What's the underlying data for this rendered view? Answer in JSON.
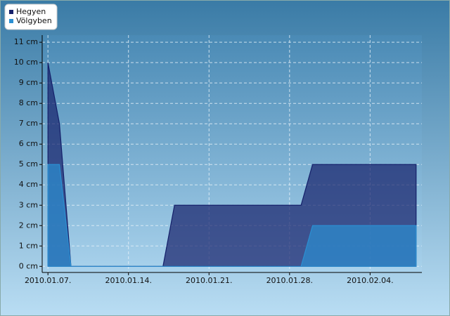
{
  "chart_data": {
    "type": "area",
    "x": [
      "2010.01.07.",
      "2010.01.08.",
      "2010.01.09.",
      "2010.01.17.",
      "2010.01.18.",
      "2010.01.29.",
      "2010.01.30.",
      "2010.02.08."
    ],
    "series": [
      {
        "name": "Hegyen",
        "color": "#15206a",
        "values": [
          10,
          7,
          0,
          0,
          3,
          3,
          5,
          5
        ]
      },
      {
        "name": "Völgyben",
        "color": "#2b8fd2",
        "values": [
          5,
          5,
          0,
          0,
          0,
          0,
          2,
          2
        ]
      }
    ],
    "xticks": [
      "2010.01.07.",
      "2010.01.14.",
      "2010.01.21.",
      "2010.01.28.",
      "2010.02.04."
    ],
    "ylim": [
      -0.3,
      11.35
    ],
    "yticks": [
      {
        "value": 0,
        "label": "0 cm"
      },
      {
        "value": 1,
        "label": "1 cm"
      },
      {
        "value": 2,
        "label": "2 cm"
      },
      {
        "value": 3,
        "label": "3 cm"
      },
      {
        "value": 4,
        "label": "4 cm"
      },
      {
        "value": 5,
        "label": "5 cm"
      },
      {
        "value": 6,
        "label": "6 cm"
      },
      {
        "value": 7,
        "label": "7 cm"
      },
      {
        "value": 8,
        "label": "8 cm"
      },
      {
        "value": 9,
        "label": "9 cm"
      },
      {
        "value": 10,
        "label": "10 cm"
      },
      {
        "value": 11,
        "label": "11 cm"
      }
    ],
    "grid": true,
    "legend": "top-left"
  }
}
